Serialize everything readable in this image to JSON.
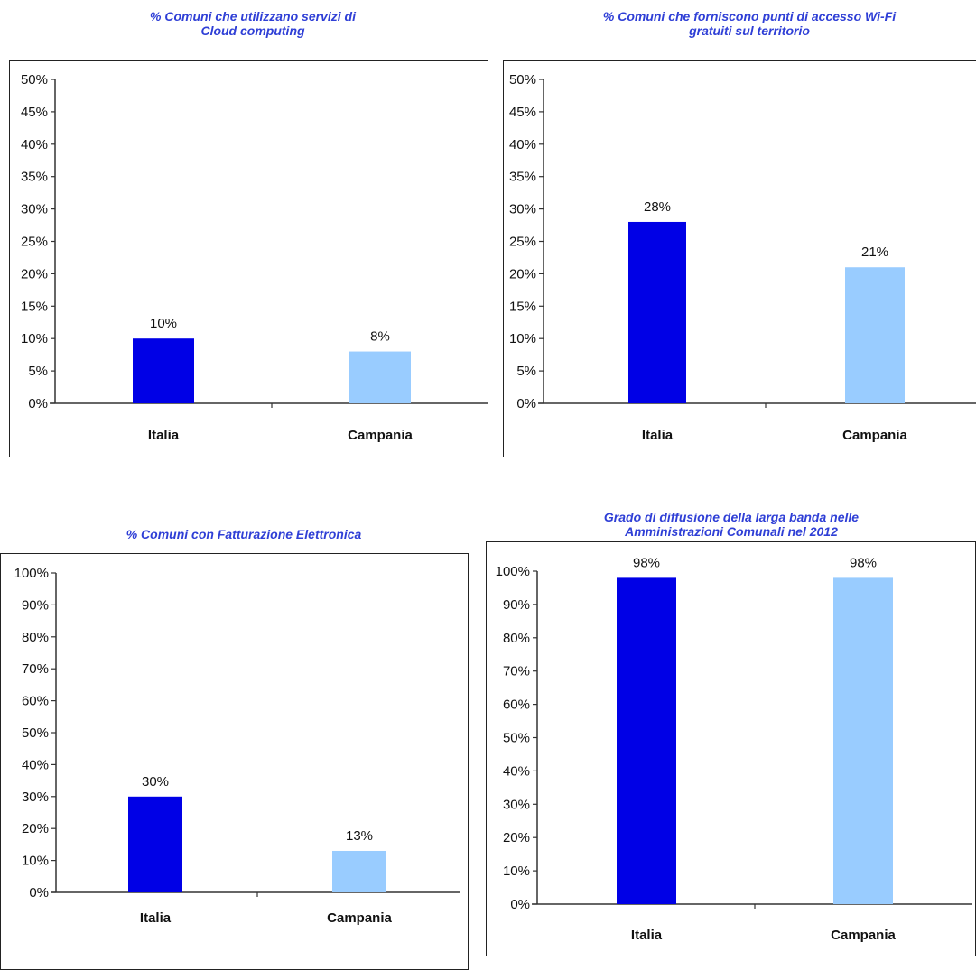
{
  "colors": {
    "italia": "#0000e6",
    "campania": "#99ccff",
    "title": "#2f3fd6",
    "axis": "#333333"
  },
  "chart_data": [
    {
      "type": "bar",
      "title": "% Comuni che utilizzano servizi di\nCloud computing",
      "categories": [
        "Italia",
        "Campania"
      ],
      "values": [
        10,
        8
      ],
      "data_labels": [
        "10%",
        "8%"
      ],
      "ylim": [
        0,
        50
      ],
      "yticks": [
        "0%",
        "5%",
        "10%",
        "15%",
        "20%",
        "25%",
        "30%",
        "35%",
        "40%",
        "45%",
        "50%"
      ],
      "grid": false,
      "legend": "none"
    },
    {
      "type": "bar",
      "title": "% Comuni che forniscono punti di accesso Wi-Fi\ngratuiti sul territorio",
      "categories": [
        "Italia",
        "Campania"
      ],
      "values": [
        28,
        21
      ],
      "data_labels": [
        "28%",
        "21%"
      ],
      "ylim": [
        0,
        50
      ],
      "yticks": [
        "0%",
        "5%",
        "10%",
        "15%",
        "20%",
        "25%",
        "30%",
        "35%",
        "40%",
        "45%",
        "50%"
      ],
      "grid": false,
      "legend": "none"
    },
    {
      "type": "bar",
      "title": "% Comuni con Fatturazione Elettronica",
      "categories": [
        "Italia",
        "Campania"
      ],
      "values": [
        30,
        13
      ],
      "data_labels": [
        "30%",
        "13%"
      ],
      "ylim": [
        0,
        100
      ],
      "yticks": [
        "0%",
        "10%",
        "20%",
        "30%",
        "40%",
        "50%",
        "60%",
        "70%",
        "80%",
        "90%",
        "100%"
      ],
      "grid": false,
      "legend": "none"
    },
    {
      "type": "bar",
      "title": "Grado di diffusione della larga banda nelle\nAmministrazioni Comunali nel 2012",
      "categories": [
        "Italia",
        "Campania"
      ],
      "values": [
        98,
        98
      ],
      "data_labels": [
        "98%",
        "98%"
      ],
      "ylim": [
        0,
        100
      ],
      "yticks": [
        "0%",
        "10%",
        "20%",
        "30%",
        "40%",
        "50%",
        "60%",
        "70%",
        "80%",
        "90%",
        "100%"
      ],
      "grid": false,
      "legend": "none"
    }
  ]
}
